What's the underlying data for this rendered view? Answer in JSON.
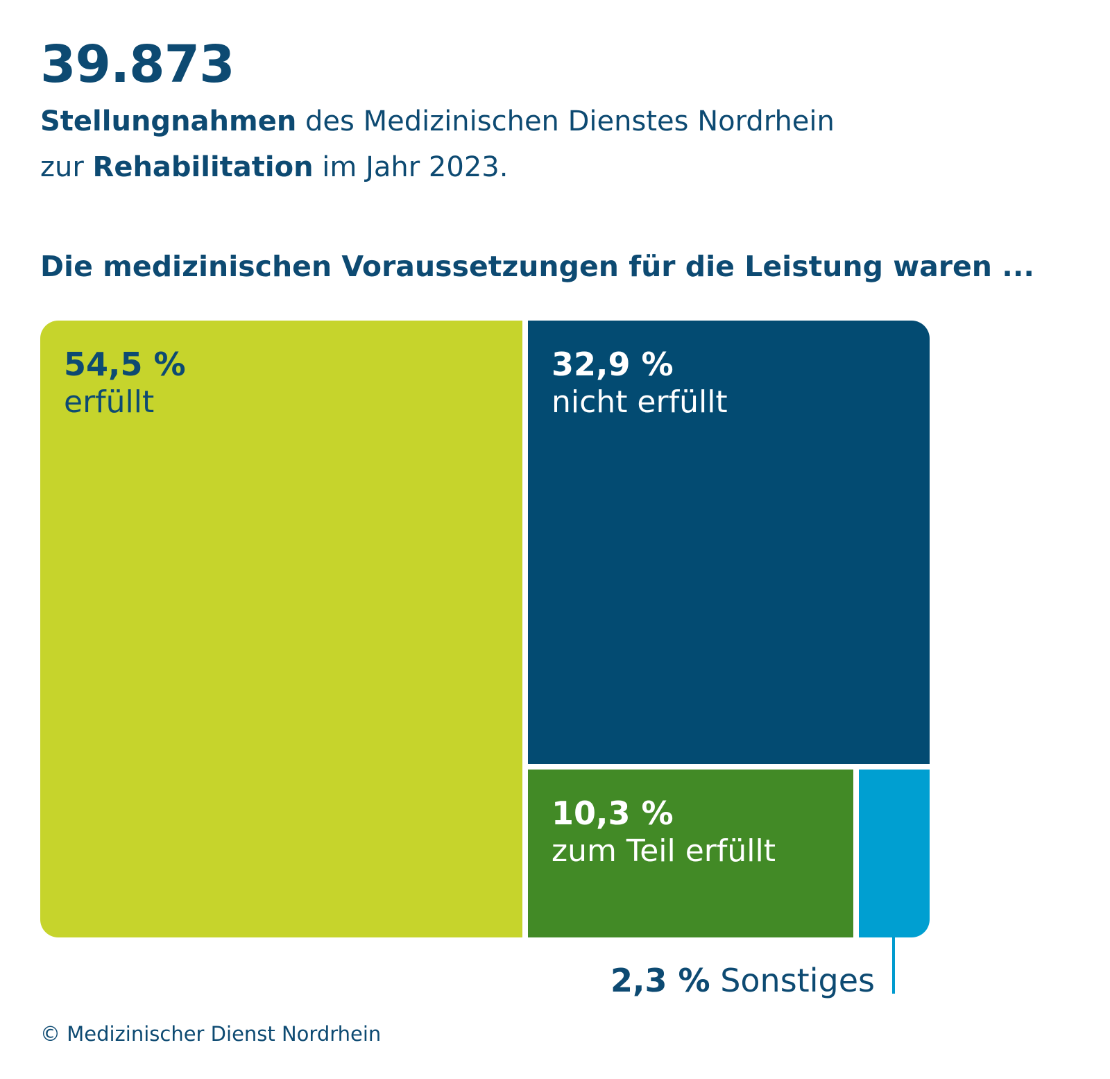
{
  "header": {
    "total": "39.873",
    "line1_bold": "Stellungnahmen",
    "line1_rest": " des Medizinischen Dienstes Nordrhein",
    "line2_pre": "zur ",
    "line2_bold": "Rehabilitation",
    "line2_rest": " im Jahr 2023."
  },
  "question": "Die medizinischen Voraussetzungen für die Leistung waren ...",
  "chart_data": {
    "type": "treemap",
    "categories": [
      "erfüllt",
      "nicht erfüllt",
      "zum Teil erfüllt",
      "Sonstiges"
    ],
    "values": [
      54.5,
      32.9,
      10.3,
      2.3
    ],
    "unit": "%",
    "value_labels": [
      "54,5 %",
      "32,9 %",
      "10,3 %",
      "2,3 %"
    ],
    "colors": [
      "#c6d42c",
      "#034b72",
      "#428a26",
      "#009fd1"
    ],
    "label_colors": [
      "#0d4a72",
      "#ffffff",
      "#ffffff",
      "#0d4a72"
    ]
  },
  "footer": {
    "copyright": "© Medizinischer Dienst Nordrhein"
  }
}
